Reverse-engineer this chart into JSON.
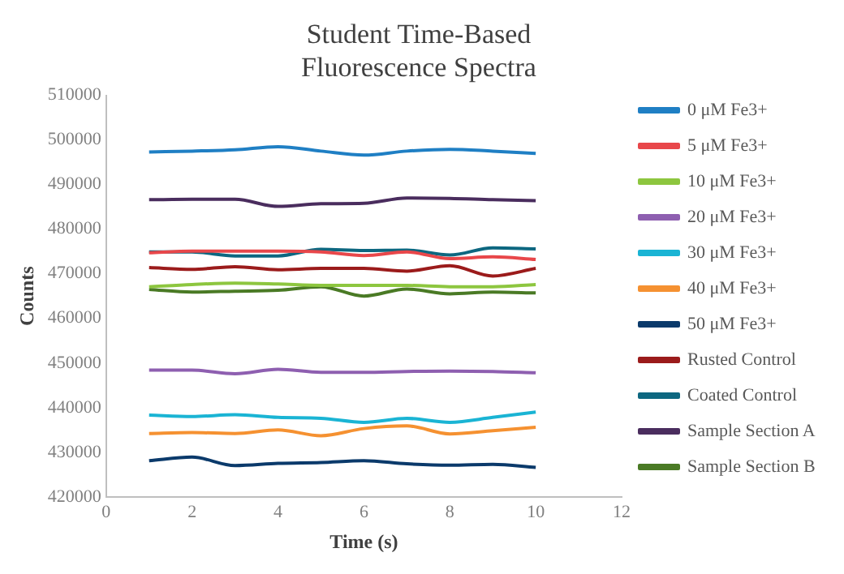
{
  "chart_data": {
    "type": "line",
    "title": "Student Time-Based Fluorescence Spectra",
    "xlabel": "Time (s)",
    "ylabel": "Counts",
    "x": [
      1,
      2,
      3,
      4,
      5,
      6,
      7,
      8,
      9,
      10
    ],
    "xlim": [
      0,
      12
    ],
    "xticks": [
      0,
      2,
      4,
      6,
      8,
      10,
      12
    ],
    "ylim": [
      420000,
      510000
    ],
    "yticks": [
      420000,
      430000,
      440000,
      450000,
      460000,
      470000,
      480000,
      490000,
      500000,
      510000
    ],
    "grid": false,
    "legend": "right",
    "marker": "none",
    "series": [
      {
        "name": "0 μM Fe3+",
        "color": "#1f7fc4",
        "values": [
          497300,
          497500,
          497800,
          498500,
          497500,
          496600,
          497500,
          497900,
          497500,
          497000
        ]
      },
      {
        "name": "5 μM Fe3+",
        "color": "#e8474a",
        "values": [
          474700,
          475100,
          475100,
          475100,
          474900,
          474100,
          474900,
          473400,
          473800,
          473200
        ]
      },
      {
        "name": "10 μM Fe3+",
        "color": "#8dc63f",
        "values": [
          467100,
          467600,
          467900,
          467700,
          467400,
          467400,
          467400,
          467100,
          467100,
          467600
        ]
      },
      {
        "name": "20 μM Fe3+",
        "color": "#8e5fb0",
        "values": [
          448400,
          448400,
          447600,
          448600,
          447900,
          447900,
          448100,
          448200,
          448100,
          447800
        ]
      },
      {
        "name": "30 μM Fe3+",
        "color": "#1ab4d4",
        "values": [
          438300,
          438000,
          438400,
          437800,
          437600,
          436700,
          437600,
          436700,
          437800,
          439000
        ]
      },
      {
        "name": "40 μM Fe3+",
        "color": "#f59131",
        "values": [
          434200,
          434400,
          434200,
          435000,
          433700,
          435300,
          435900,
          434100,
          434800,
          435600
        ]
      },
      {
        "name": "50 μM Fe3+",
        "color": "#0b3a6b",
        "values": [
          428100,
          428900,
          427000,
          427500,
          427700,
          428100,
          427400,
          427100,
          427300,
          426600
        ]
      },
      {
        "name": "Rusted Control",
        "color": "#9b1b1b",
        "values": [
          471400,
          471000,
          471600,
          470900,
          471200,
          471200,
          470600,
          471800,
          469500,
          471200
        ]
      },
      {
        "name": "Coated Control",
        "color": "#0d6780",
        "values": [
          474900,
          474900,
          474000,
          474000,
          475500,
          475200,
          475300,
          474200,
          475800,
          475600
        ]
      },
      {
        "name": "Sample Section A",
        "color": "#4a2d5e",
        "values": [
          486600,
          486700,
          486700,
          485100,
          485700,
          485800,
          487000,
          486900,
          486600,
          486400
        ]
      },
      {
        "name": "Sample Section B",
        "color": "#4a7a25",
        "values": [
          466500,
          465900,
          466100,
          466300,
          467100,
          465000,
          466600,
          465500,
          465900,
          465700
        ]
      }
    ]
  }
}
